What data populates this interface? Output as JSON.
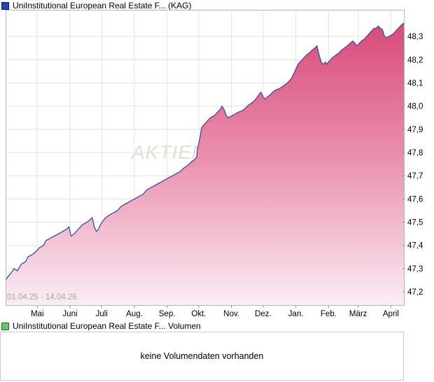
{
  "price_chart": {
    "legend_label": "UniInstitutional European Real Estate F... (KAG)",
    "legend_swatch": {
      "fill": "#2144bf",
      "border": "#00137a"
    },
    "period_label": "01.04.25 - 14.04.26",
    "watermark": "AKTIEN",
    "chart_data": {
      "type": "area",
      "title": "",
      "xlabel": "",
      "ylabel": "",
      "grid": true,
      "legend_position": "top-left",
      "line_color": "#2b52a6",
      "fill_gradient": [
        "#d84a79",
        "#eb93b1",
        "#fbeef4"
      ],
      "watermark_color": "#e2ded8",
      "grid_color": "#e3e3e3",
      "frame_color": "#b6b6b6",
      "tick_color": "#8a8a8a",
      "label_color": "#000000",
      "decimal_separator": ",",
      "x_axis": {
        "range_days": [
          0,
          378
        ],
        "start_label": "01.04.25",
        "end_label": "14.04.26",
        "ticks": [
          {
            "label": "Mai",
            "day": 30
          },
          {
            "label": "Juni",
            "day": 61
          },
          {
            "label": "Juli",
            "day": 91
          },
          {
            "label": "Aug.",
            "day": 122
          },
          {
            "label": "Sep.",
            "day": 153
          },
          {
            "label": "Okt.",
            "day": 183
          },
          {
            "label": "Nov.",
            "day": 214
          },
          {
            "label": "Dez.",
            "day": 244
          },
          {
            "label": "Jan.",
            "day": 275
          },
          {
            "label": "Feb.",
            "day": 306
          },
          {
            "label": "März",
            "day": 334
          },
          {
            "label": "April",
            "day": 365
          }
        ]
      },
      "y_axis": {
        "ylim": [
          47.14,
          48.415
        ],
        "ticks": [
          47.2,
          47.3,
          47.4,
          47.5,
          47.6,
          47.7,
          47.8,
          47.9,
          48.0,
          48.1,
          48.2,
          48.3
        ]
      },
      "series": [
        {
          "name": "UniInstitutional European Real Estate F... (KAG)",
          "points": [
            [
              0,
              47.25
            ],
            [
              3,
              47.27
            ],
            [
              5,
              47.28
            ],
            [
              8,
              47.3
            ],
            [
              11,
              47.29
            ],
            [
              15,
              47.32
            ],
            [
              19,
              47.33
            ],
            [
              21,
              47.35
            ],
            [
              25,
              47.36
            ],
            [
              28,
              47.37
            ],
            [
              32,
              47.39
            ],
            [
              36,
              47.4
            ],
            [
              38,
              47.42
            ],
            [
              42,
              47.43
            ],
            [
              46,
              47.44
            ],
            [
              50,
              47.45
            ],
            [
              54,
              47.46
            ],
            [
              58,
              47.47
            ],
            [
              60,
              47.48
            ],
            [
              62,
              47.44
            ],
            [
              65,
              47.45
            ],
            [
              69,
              47.47
            ],
            [
              73,
              47.49
            ],
            [
              77,
              47.5
            ],
            [
              80,
              47.51
            ],
            [
              82,
              47.52
            ],
            [
              84,
              47.48
            ],
            [
              86,
              47.46
            ],
            [
              88,
              47.47
            ],
            [
              90,
              47.49
            ],
            [
              93,
              47.51
            ],
            [
              95,
              47.52
            ],
            [
              98,
              47.53
            ],
            [
              102,
              47.54
            ],
            [
              106,
              47.55
            ],
            [
              110,
              47.57
            ],
            [
              114,
              47.58
            ],
            [
              118,
              47.59
            ],
            [
              122,
              47.6
            ],
            [
              126,
              47.61
            ],
            [
              130,
              47.62
            ],
            [
              134,
              47.64
            ],
            [
              138,
              47.65
            ],
            [
              142,
              47.66
            ],
            [
              146,
              47.67
            ],
            [
              150,
              47.68
            ],
            [
              154,
              47.69
            ],
            [
              158,
              47.7
            ],
            [
              162,
              47.71
            ],
            [
              166,
              47.72
            ],
            [
              168,
              47.73
            ],
            [
              171,
              47.74
            ],
            [
              174,
              47.75
            ],
            [
              176,
              47.76
            ],
            [
              179,
              47.77
            ],
            [
              181,
              47.78
            ],
            [
              182,
              47.82
            ],
            [
              184,
              47.86
            ],
            [
              185,
              47.89
            ],
            [
              186,
              47.91
            ],
            [
              188,
              47.92
            ],
            [
              190,
              47.93
            ],
            [
              192,
              47.94
            ],
            [
              194,
              47.95
            ],
            [
              198,
              47.96
            ],
            [
              200,
              47.97
            ],
            [
              202,
              47.98
            ],
            [
              204,
              47.99
            ],
            [
              205,
              48.0
            ],
            [
              207,
              47.985
            ],
            [
              209,
              47.96
            ],
            [
              211,
              47.95
            ],
            [
              213,
              47.955
            ],
            [
              215,
              47.96
            ],
            [
              217,
              47.965
            ],
            [
              219,
              47.97
            ],
            [
              221,
              47.975
            ],
            [
              224,
              47.98
            ],
            [
              227,
              47.99
            ],
            [
              229,
              48.0
            ],
            [
              232,
              48.01
            ],
            [
              235,
              48.02
            ],
            [
              237,
              48.03
            ],
            [
              240,
              48.05
            ],
            [
              242,
              48.06
            ],
            [
              244,
              48.04
            ],
            [
              246,
              48.03
            ],
            [
              248,
              48.04
            ],
            [
              251,
              48.05
            ],
            [
              253,
              48.06
            ],
            [
              256,
              48.07
            ],
            [
              259,
              48.075
            ],
            [
              261,
              48.08
            ],
            [
              264,
              48.09
            ],
            [
              267,
              48.1
            ],
            [
              269,
              48.11
            ],
            [
              271,
              48.12
            ],
            [
              273,
              48.14
            ],
            [
              275,
              48.16
            ],
            [
              277,
              48.18
            ],
            [
              279,
              48.19
            ],
            [
              281,
              48.2
            ],
            [
              283,
              48.21
            ],
            [
              285,
              48.22
            ],
            [
              288,
              48.23
            ],
            [
              290,
              48.24
            ],
            [
              293,
              48.25
            ],
            [
              295,
              48.26
            ],
            [
              297,
              48.22
            ],
            [
              299,
              48.19
            ],
            [
              301,
              48.18
            ],
            [
              303,
              48.19
            ],
            [
              304,
              48.18
            ],
            [
              306,
              48.19
            ],
            [
              308,
              48.2
            ],
            [
              310,
              48.21
            ],
            [
              313,
              48.22
            ],
            [
              316,
              48.23
            ],
            [
              318,
              48.24
            ],
            [
              321,
              48.25
            ],
            [
              324,
              48.26
            ],
            [
              326,
              48.27
            ],
            [
              329,
              48.28
            ],
            [
              331,
              48.27
            ],
            [
              333,
              48.26
            ],
            [
              335,
              48.27
            ],
            [
              337,
              48.28
            ],
            [
              340,
              48.29
            ],
            [
              342,
              48.3
            ],
            [
              345,
              48.315
            ],
            [
              348,
              48.33
            ],
            [
              349,
              48.335
            ],
            [
              351,
              48.335
            ],
            [
              353,
              48.345
            ],
            [
              355,
              48.335
            ],
            [
              357,
              48.33
            ],
            [
              359,
              48.3
            ],
            [
              361,
              48.295
            ],
            [
              363,
              48.3
            ],
            [
              365,
              48.305
            ],
            [
              367,
              48.31
            ],
            [
              369,
              48.32
            ],
            [
              371,
              48.33
            ],
            [
              373,
              48.34
            ],
            [
              375,
              48.35
            ],
            [
              378,
              48.36
            ]
          ]
        }
      ]
    }
  },
  "volume_chart": {
    "legend_label": "UniInstitutional European Real Estate F... Volumen",
    "legend_swatch": {
      "fill": "#63cb63",
      "border": "#2c6b2c"
    },
    "message": "keine Volumendaten vorhanden"
  }
}
